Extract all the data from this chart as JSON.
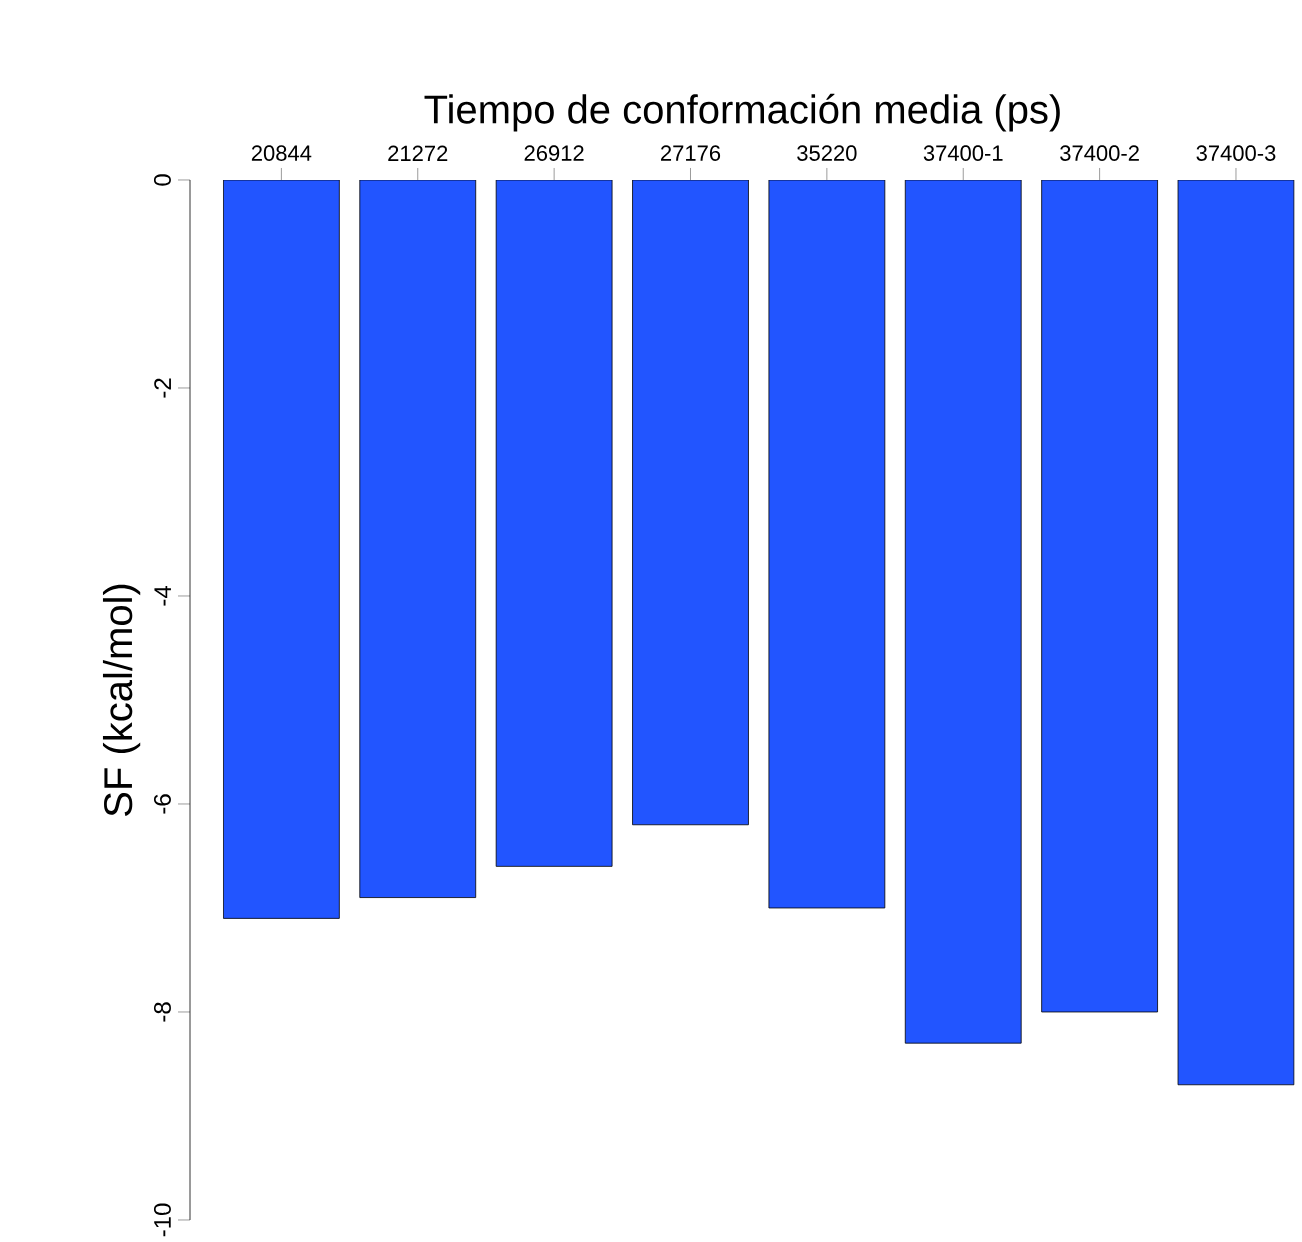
{
  "chart_data": {
    "type": "bar",
    "xlabel": "Tiempo de conformación media (ps)",
    "ylabel": "SF (kcal/mol)",
    "categories": [
      "20844",
      "21272",
      "26912",
      "27176",
      "35220",
      "37400-1",
      "37400-2",
      "37400-3"
    ],
    "values": [
      -7.1,
      -6.9,
      -6.6,
      -6.2,
      -7.0,
      -8.3,
      -8.0,
      -8.7
    ],
    "color": "#2255ff",
    "ylim": [
      -10,
      0
    ],
    "yticks": [
      0,
      -2,
      -4,
      -6,
      -8,
      -10
    ]
  }
}
